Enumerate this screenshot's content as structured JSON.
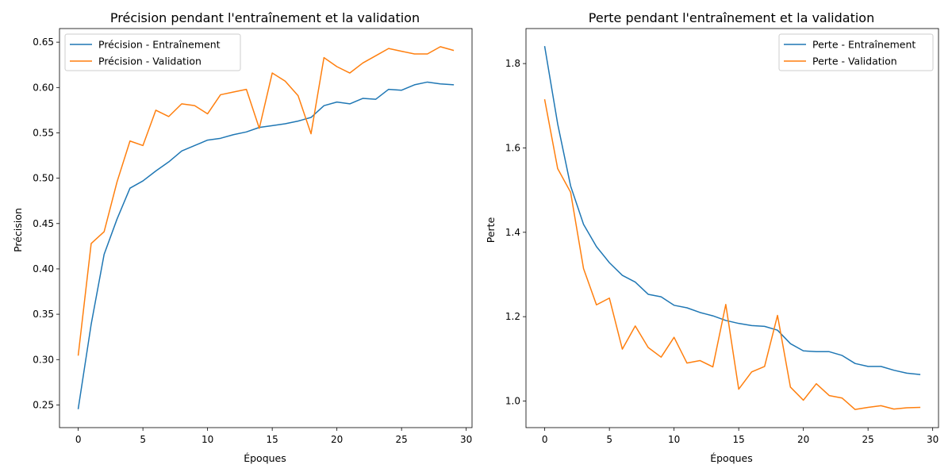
{
  "chart_data": [
    {
      "type": "line",
      "title": "Précision pendant l'entraînement et la validation",
      "xlabel": "Époques",
      "ylabel": "Précision",
      "xlim": [
        -1.45,
        30.45
      ],
      "ylim": [
        0.225,
        0.665
      ],
      "xticks": [
        0,
        5,
        10,
        15,
        20,
        25,
        30
      ],
      "yticks": [
        0.25,
        0.3,
        0.35,
        0.4,
        0.45,
        0.5,
        0.55,
        0.6,
        0.65
      ],
      "ytick_decimals": 2,
      "grid": false,
      "legend_position": "top-left",
      "x": [
        0,
        1,
        2,
        3,
        4,
        5,
        6,
        7,
        8,
        9,
        10,
        11,
        12,
        13,
        14,
        15,
        16,
        17,
        18,
        19,
        20,
        21,
        22,
        23,
        24,
        25,
        26,
        27,
        28,
        29
      ],
      "series": [
        {
          "name": "Précision - Entraînement",
          "color": "#1f77b4",
          "values": [
            0.246,
            0.339,
            0.416,
            0.455,
            0.489,
            0.497,
            0.508,
            0.518,
            0.53,
            0.536,
            0.542,
            0.544,
            0.548,
            0.551,
            0.556,
            0.558,
            0.56,
            0.563,
            0.567,
            0.58,
            0.584,
            0.582,
            0.588,
            0.587,
            0.598,
            0.597,
            0.603,
            0.606,
            0.604,
            0.603
          ]
        },
        {
          "name": "Précision - Validation",
          "color": "#ff7f0e",
          "values": [
            0.305,
            0.428,
            0.441,
            0.496,
            0.541,
            0.536,
            0.575,
            0.568,
            0.582,
            0.58,
            0.571,
            0.592,
            0.595,
            0.598,
            0.555,
            0.616,
            0.607,
            0.591,
            0.549,
            0.633,
            0.623,
            0.616,
            0.627,
            0.635,
            0.643,
            0.64,
            0.637,
            0.637,
            0.645,
            0.641
          ]
        }
      ]
    },
    {
      "type": "line",
      "title": "Perte pendant l'entraînement et la validation",
      "xlabel": "Époques",
      "ylabel": "Perte",
      "xlim": [
        -1.45,
        30.45
      ],
      "ylim": [
        0.937,
        1.883
      ],
      "xticks": [
        0,
        5,
        10,
        15,
        20,
        25,
        30
      ],
      "yticks": [
        1.0,
        1.2,
        1.4,
        1.6,
        1.8
      ],
      "ytick_decimals": 1,
      "grid": false,
      "legend_position": "top-right",
      "x": [
        0,
        1,
        2,
        3,
        4,
        5,
        6,
        7,
        8,
        9,
        10,
        11,
        12,
        13,
        14,
        15,
        16,
        17,
        18,
        19,
        20,
        21,
        22,
        23,
        24,
        25,
        26,
        27,
        28,
        29
      ],
      "series": [
        {
          "name": "Perte - Entraînement",
          "color": "#1f77b4",
          "values": [
            1.84,
            1.657,
            1.51,
            1.419,
            1.366,
            1.328,
            1.298,
            1.282,
            1.253,
            1.247,
            1.227,
            1.221,
            1.21,
            1.202,
            1.191,
            1.184,
            1.179,
            1.177,
            1.168,
            1.136,
            1.119,
            1.117,
            1.117,
            1.108,
            1.089,
            1.082,
            1.082,
            1.073,
            1.066,
            1.063
          ]
        },
        {
          "name": "Perte - Validation",
          "color": "#ff7f0e",
          "values": [
            1.714,
            1.551,
            1.495,
            1.314,
            1.228,
            1.244,
            1.123,
            1.178,
            1.127,
            1.104,
            1.151,
            1.09,
            1.096,
            1.081,
            1.229,
            1.028,
            1.069,
            1.082,
            1.203,
            1.033,
            1.002,
            1.041,
            1.013,
            1.007,
            0.98,
            0.985,
            0.989,
            0.981,
            0.984,
            0.985
          ]
        }
      ]
    }
  ]
}
